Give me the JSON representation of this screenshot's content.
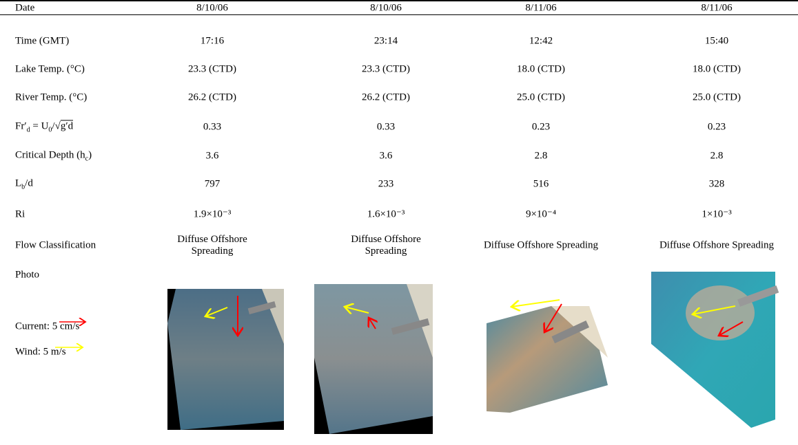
{
  "table": {
    "header": [
      "Date",
      "8/10/06",
      "8/10/06",
      "8/11/06",
      "8/11/06"
    ],
    "rows": [
      {
        "label": [
          {
            "text": "Time (GMT)"
          }
        ],
        "cells": [
          "17:16",
          "23:14",
          "12:42",
          "15:40"
        ]
      },
      {
        "label": [
          {
            "text": "Lake Temp. (°C)"
          }
        ],
        "cells": [
          "23.3 (CTD)",
          "23.3 (CTD)",
          "18.0 (CTD)",
          "18.0 (CTD)"
        ]
      },
      {
        "label": [
          {
            "text": "River Temp. (°C)"
          }
        ],
        "cells": [
          "26.2 (CTD)",
          "26.2 (CTD)",
          "25.0 (CTD)",
          "25.0 (CTD)"
        ]
      },
      {
        "label": [
          {
            "text": "Fr′"
          },
          {
            "text": "d",
            "sub": true
          },
          {
            "text": " = U"
          },
          {
            "text": "0",
            "sub": true
          },
          {
            "text": "/√"
          },
          {
            "text": "g′d",
            "overline": true
          }
        ],
        "cells": [
          "0.33",
          "0.33",
          "0.23",
          "0.23"
        ]
      },
      {
        "label": [
          {
            "text": "Critical Depth (h"
          },
          {
            "text": "c",
            "sub": true
          },
          {
            "text": ")"
          }
        ],
        "cells": [
          "3.6",
          "3.6",
          "2.8",
          "2.8"
        ]
      },
      {
        "label": [
          {
            "text": "L"
          },
          {
            "text": "b",
            "sub": true
          },
          {
            "text": "/d"
          }
        ],
        "cells": [
          "797",
          "233",
          "516",
          "328"
        ]
      },
      {
        "label": [
          {
            "text": "Ri"
          }
        ],
        "cells": [
          "1.9×10⁻³",
          "1.6×10⁻³",
          "9×10⁻⁴",
          "1×10⁻³"
        ]
      },
      {
        "label": [
          {
            "text": "Flow Classification"
          }
        ],
        "cells": [
          "Diffuse Offshore Spreading",
          "Diffuse Offshore Spreading",
          "Diffuse Offshore Spreading",
          "Diffuse Offshore Spreading"
        ],
        "wrap": [
          true,
          true,
          false,
          false
        ]
      }
    ],
    "photo_label": "Photo",
    "legend": {
      "current": "Current: 5 cm/s",
      "wind": "Wind: 5 m/s"
    }
  }
}
